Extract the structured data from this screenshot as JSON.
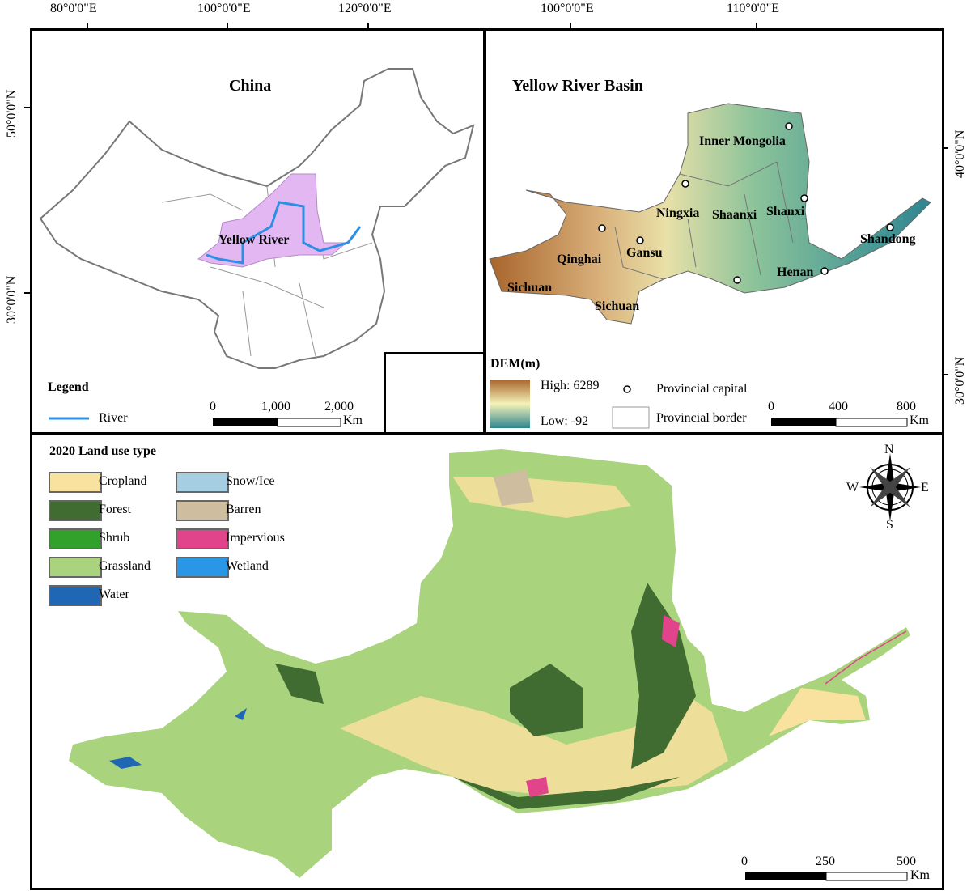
{
  "top_left": {
    "title": "China",
    "river_label": "Yellow River",
    "legend_title": "Legend",
    "legend_river": "River",
    "top_ticks": [
      "80°0'0\"E",
      "100°0'0\"E",
      "120°0'0\"E"
    ],
    "left_ticks": [
      "50°0'0\"N",
      "30°0'0\"N"
    ],
    "scale": {
      "labels": [
        "0",
        "1,000",
        "2,000"
      ],
      "unit": "Km"
    },
    "colors": {
      "basin": "#e3b7f2",
      "river": "#2b8fe6"
    }
  },
  "top_right": {
    "title": "Yellow River Basin",
    "top_ticks": [
      "100°0'0\"E",
      "110°0'0\"E"
    ],
    "right_ticks": [
      "40°0'0\"N",
      "30°0'0\"N"
    ],
    "provinces": [
      "Inner Mongolia",
      "Ningxia",
      "Shaanxi",
      "Shanxi",
      "Qinghai",
      "Gansu",
      "Sichuan",
      "Sichuan",
      "Henan",
      "Shandong"
    ],
    "dem_title": "DEM(m)",
    "dem_high": "High: 6289",
    "dem_low": "Low: -92",
    "capital_label": "Provincial capital",
    "border_label": "Provincial border",
    "scale": {
      "labels": [
        "0",
        "400",
        "800"
      ],
      "unit": "Km"
    },
    "colors": {
      "high": "#a8652c",
      "mid": "#f5f2b8",
      "low": "#2f8590"
    }
  },
  "bottom": {
    "legend_title": "2020 Land use type",
    "classes": [
      {
        "label": "Cropland",
        "color": "#f9e19f"
      },
      {
        "label": "Forest",
        "color": "#406b31"
      },
      {
        "label": "Shrub",
        "color": "#31a12c"
      },
      {
        "label": "Grassland",
        "color": "#aad37e"
      },
      {
        "label": "Water",
        "color": "#1f67b5"
      },
      {
        "label": "Snow/Ice",
        "color": "#a6cee3"
      },
      {
        "label": "Barren",
        "color": "#cebd9f"
      },
      {
        "label": "Impervious",
        "color": "#e2448c"
      },
      {
        "label": "Wetland",
        "color": "#2997e6"
      }
    ],
    "compass": {
      "n": "N",
      "s": "S",
      "e": "E",
      "w": "W"
    },
    "scale": {
      "labels": [
        "0",
        "250",
        "500"
      ],
      "unit": "Km"
    }
  }
}
